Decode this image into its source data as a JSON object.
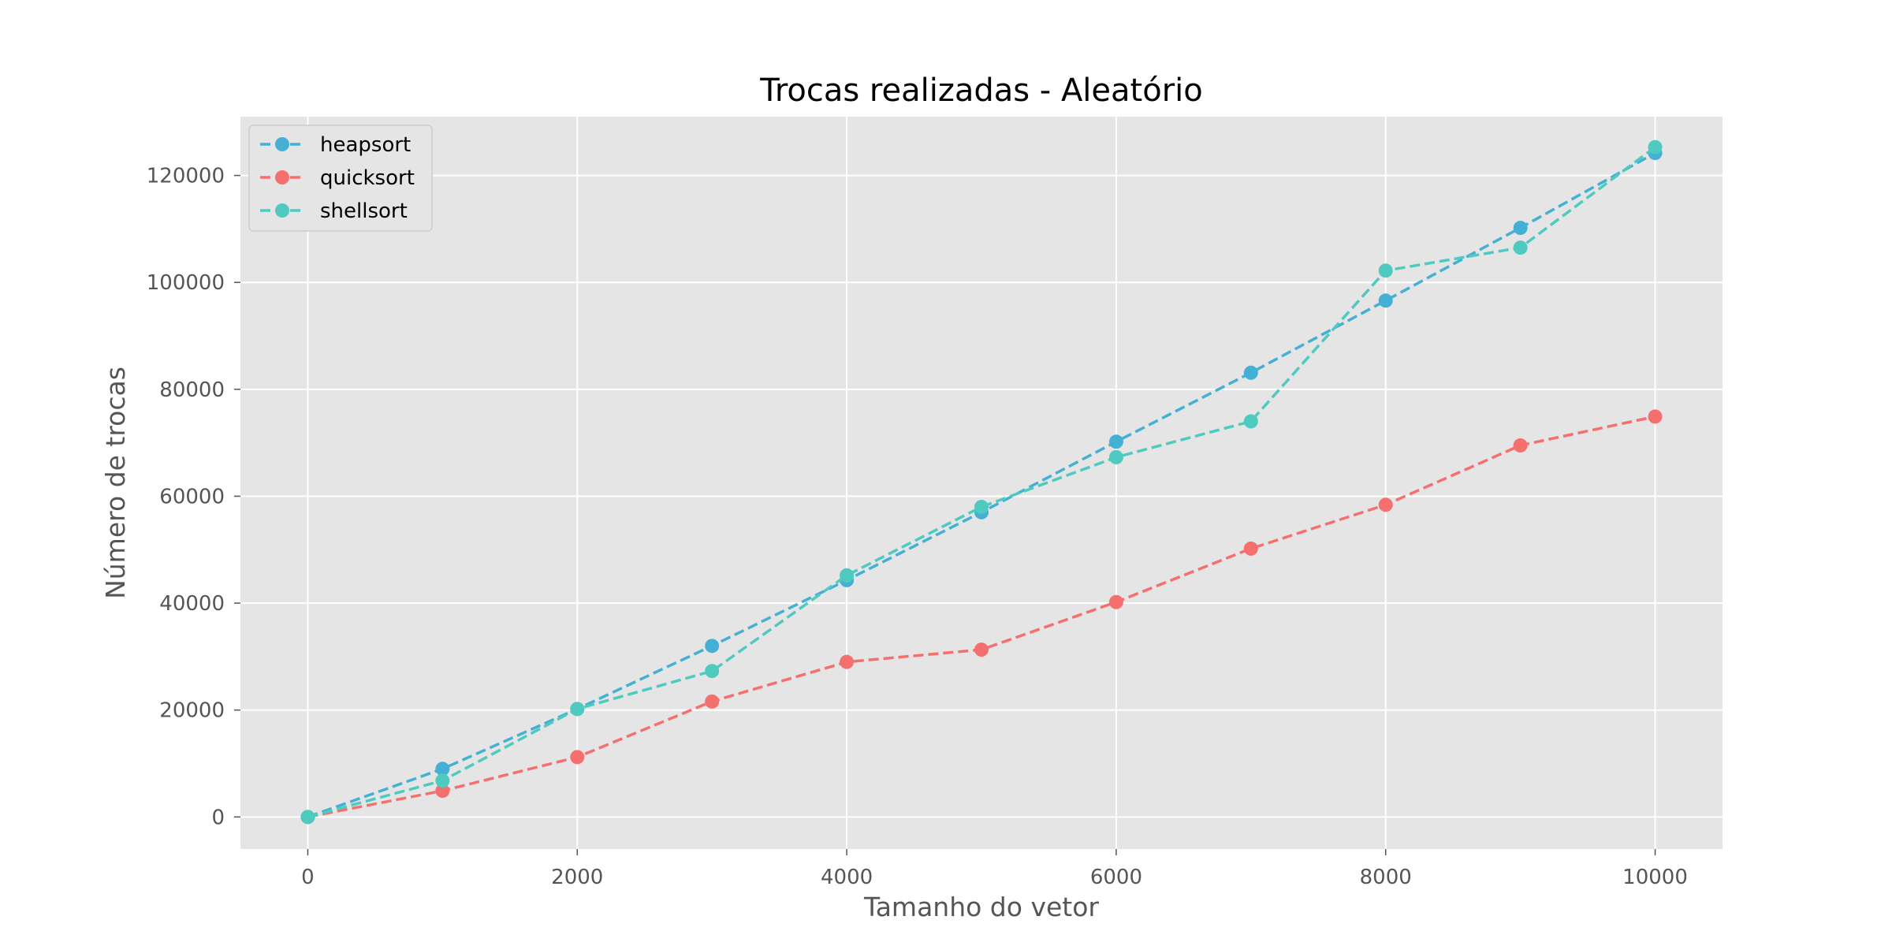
{
  "chart_data": {
    "type": "line",
    "title": "Trocas realizadas - Aleatório",
    "xlabel": "Tamanho do vetor",
    "ylabel": "Número de trocas",
    "xlim": [
      -500,
      10500
    ],
    "ylim": [
      -6000,
      131000
    ],
    "xticks": [
      0,
      2000,
      4000,
      6000,
      8000,
      10000
    ],
    "yticks": [
      0,
      20000,
      40000,
      60000,
      80000,
      100000,
      120000
    ],
    "grid": true,
    "legend_position": "upper-left",
    "x": [
      0,
      1000,
      2000,
      3000,
      4000,
      5000,
      6000,
      7000,
      8000,
      9000,
      10000
    ],
    "series": [
      {
        "name": "heapsort",
        "color": "#44b0d3",
        "values": [
          0,
          9000,
          20200,
          32000,
          44300,
          57000,
          70200,
          83100,
          96600,
          110200,
          124200
        ]
      },
      {
        "name": "quicksort",
        "color": "#f66f6f",
        "values": [
          0,
          4900,
          11200,
          21600,
          29000,
          31300,
          40200,
          50200,
          58400,
          69500,
          74900
        ]
      },
      {
        "name": "shellsort",
        "color": "#4fcac0",
        "values": [
          0,
          6800,
          20200,
          27300,
          45200,
          58000,
          67300,
          74000,
          102200,
          106500,
          125300
        ]
      }
    ]
  }
}
